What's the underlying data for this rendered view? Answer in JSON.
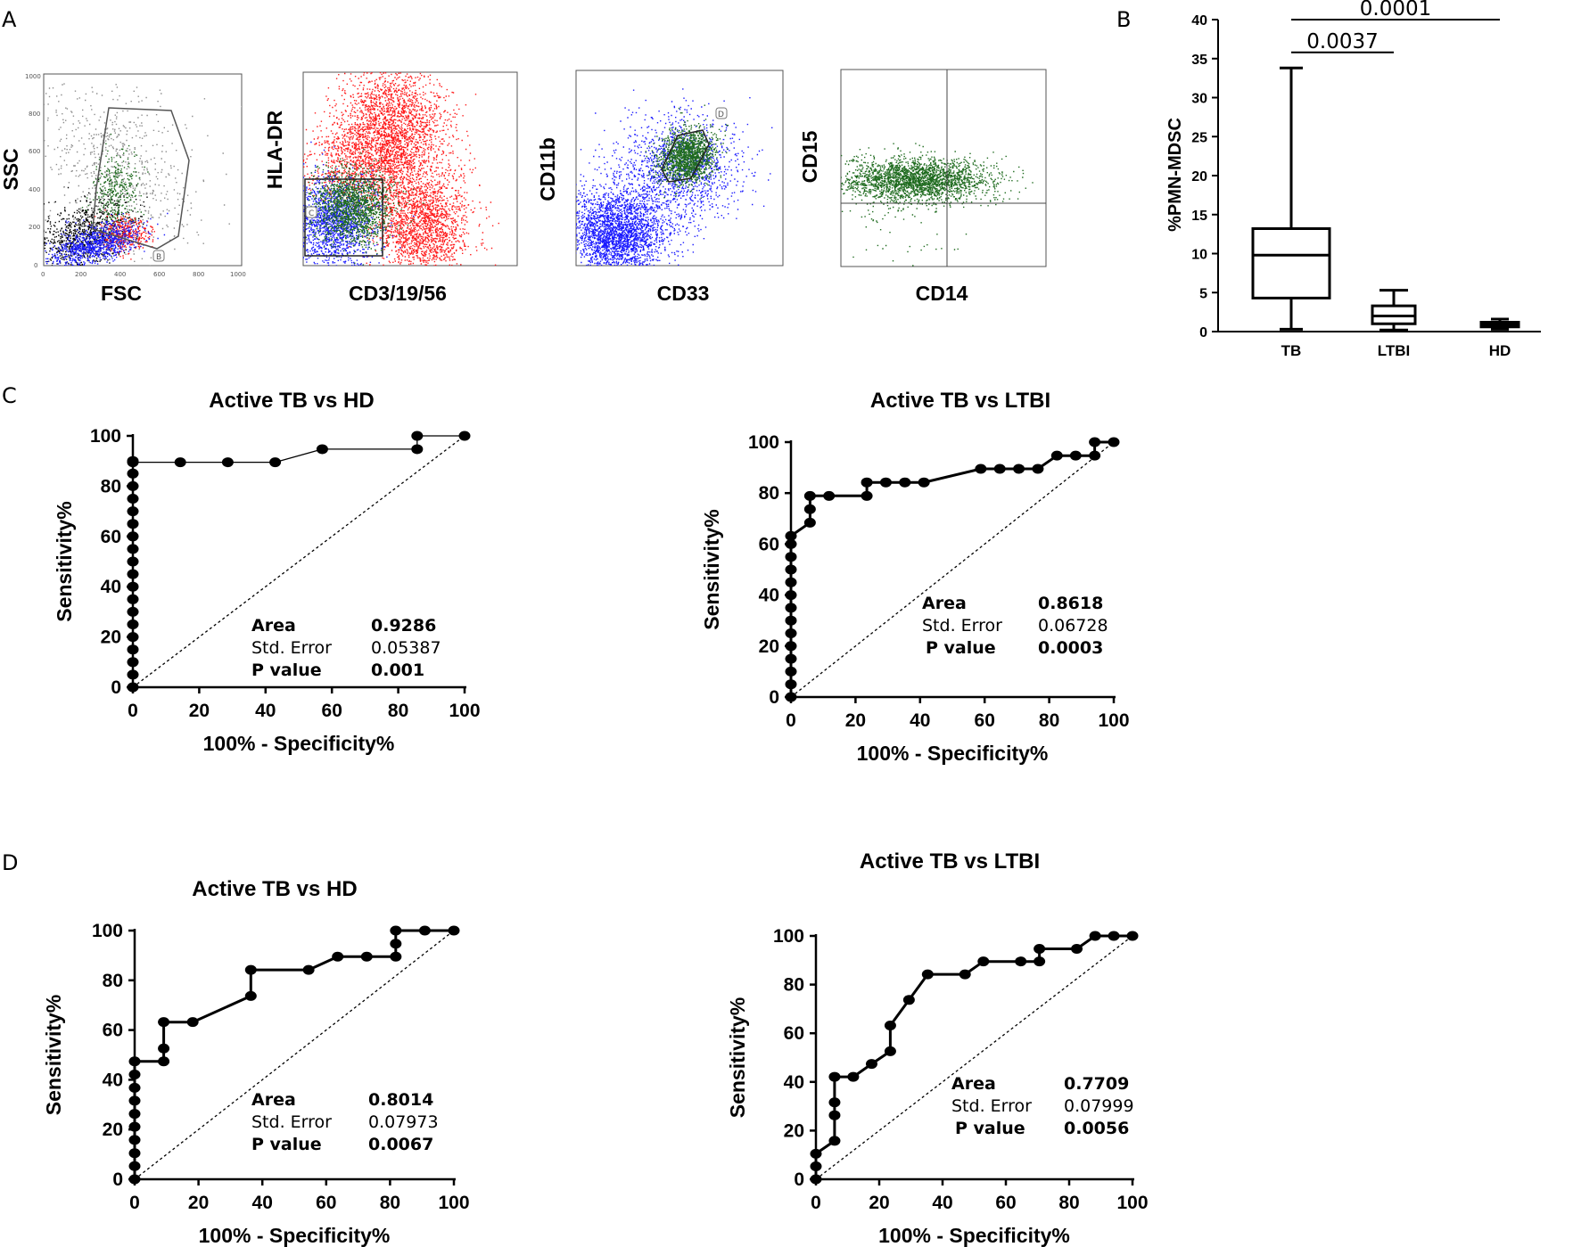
{
  "panel_labels": {
    "A": "A",
    "B": "B",
    "C": "C",
    "D": "D"
  },
  "flow_panels": [
    {
      "x_label": "FSC",
      "y_label": "SSC",
      "gate": "B"
    },
    {
      "x_label": "CD3/19/56",
      "y_label": "HLA-DR",
      "gate": "C"
    },
    {
      "x_label": "CD33",
      "y_label": "CD11b",
      "gate": "D"
    },
    {
      "x_label": "CD14",
      "y_label": "CD15",
      "gate": ""
    }
  ],
  "colors": {
    "red": "#ff1a1a",
    "blue": "#1a1aff",
    "green": "#1f6b1f",
    "black": "#000000",
    "grey": "#8c8c8c"
  },
  "chart_data": [
    {
      "id": "B",
      "type": "box",
      "ylabel": "%PMN-MDSC",
      "ylim": [
        0,
        40
      ],
      "yticks": [
        "0",
        "5",
        "10",
        "15",
        "20",
        "25",
        "30",
        "35",
        "40"
      ],
      "categories": [
        "TB",
        "LTBI",
        "HD"
      ],
      "boxes": [
        {
          "min": 0.3,
          "q1": 4.3,
          "median": 9.8,
          "q3": 13.2,
          "max": 33.8
        },
        {
          "min": 0.2,
          "q1": 1.0,
          "median": 2.0,
          "q3": 3.3,
          "max": 5.3
        },
        {
          "min": 0.3,
          "q1": 0.6,
          "median": 0.9,
          "q3": 1.2,
          "max": 1.6
        }
      ],
      "comparisons": [
        {
          "from": "TB",
          "to": "HD",
          "label": "0.0001",
          "y": 40.0
        },
        {
          "from": "TB",
          "to": "LTBI",
          "label": "0.0037",
          "y": 35.8
        }
      ]
    },
    {
      "id": "C-left",
      "type": "roc",
      "title": "Active TB vs HD",
      "xlabel": "100% - Specificity%",
      "ylabel": "Sensitivity%",
      "ticks": [
        "0",
        "20",
        "40",
        "60",
        "80",
        "100"
      ],
      "stats": {
        "area_label": "Area",
        "area": "0.9286",
        "se_label": "Std. Error",
        "se": "0.05387",
        "p_label": "P value",
        "p": "0.001"
      },
      "x": [
        0,
        0,
        0,
        0,
        0,
        0,
        0,
        0,
        0,
        0,
        0,
        0,
        0,
        0,
        0,
        0,
        0,
        0,
        0,
        0,
        14.3,
        28.6,
        42.9,
        57.1,
        85.7,
        85.7,
        100
      ],
      "y": [
        0,
        5,
        10,
        15,
        20,
        25,
        30,
        35,
        40,
        45,
        50,
        55,
        60,
        65,
        70,
        75,
        80,
        85,
        90,
        89.5,
        89.5,
        89.5,
        89.5,
        94.7,
        94.7,
        100,
        100
      ]
    },
    {
      "id": "C-right",
      "type": "roc",
      "title": "Active TB vs LTBI",
      "xlabel": "100% - Specificity%",
      "ylabel": "Sensitivity%",
      "ticks": [
        "0",
        "20",
        "40",
        "60",
        "80",
        "100"
      ],
      "stats": {
        "area_label": "Area",
        "area": "0.8618",
        "se_label": "Std. Error",
        "se": "0.06728",
        "p_label": "P value",
        "p": "0.0003"
      },
      "x": [
        0,
        0,
        0,
        0,
        0,
        0,
        0,
        0,
        0,
        0,
        0,
        0,
        0,
        0,
        5.9,
        5.9,
        5.9,
        11.8,
        23.5,
        23.5,
        29.4,
        35.3,
        41.2,
        58.8,
        64.7,
        70.6,
        76.5,
        82.4,
        88.2,
        94.1,
        94.1,
        100
      ],
      "y": [
        0,
        5,
        10,
        15,
        20,
        25,
        30,
        35,
        40,
        45,
        50,
        55,
        60,
        63.2,
        68.4,
        73.7,
        78.9,
        78.9,
        78.9,
        84.2,
        84.2,
        84.2,
        84.2,
        89.5,
        89.5,
        89.5,
        89.5,
        94.7,
        94.7,
        94.7,
        100,
        100
      ]
    },
    {
      "id": "D-left",
      "type": "roc",
      "title": "Active TB vs HD",
      "xlabel": "100% - Specificity%",
      "ylabel": "Sensitivity%",
      "ticks": [
        "0",
        "20",
        "40",
        "60",
        "80",
        "100"
      ],
      "stats": {
        "area_label": "Area",
        "area": "0.8014",
        "se_label": "Std. Error",
        "se": "0.07973",
        "p_label": "P value",
        "p": "0.0067"
      },
      "x": [
        0,
        0,
        0,
        0,
        0,
        0,
        0,
        0,
        0,
        0,
        9.1,
        9.1,
        9.1,
        18.2,
        36.4,
        36.4,
        54.5,
        63.6,
        72.7,
        81.8,
        81.8,
        81.8,
        90.9,
        100
      ],
      "y": [
        0,
        5.3,
        10.5,
        15.8,
        21.1,
        26.3,
        31.6,
        36.8,
        42.1,
        47.4,
        47.4,
        52.6,
        63.2,
        63.2,
        73.7,
        84.2,
        84.2,
        89.5,
        89.5,
        89.5,
        94.7,
        100,
        100,
        100
      ]
    },
    {
      "id": "D-right",
      "type": "roc",
      "title": "Active TB vs LTBI",
      "xlabel": "100% - Specificity%",
      "ylabel": "Sensitivity%",
      "ticks": [
        "0",
        "20",
        "40",
        "60",
        "80",
        "100"
      ],
      "stats": {
        "area_label": "Area",
        "area": "0.7709",
        "se_label": "Std. Error",
        "se": "0.07999",
        "p_label": "P value",
        "p": "0.0056"
      },
      "x": [
        0,
        0,
        0,
        5.9,
        5.9,
        5.9,
        5.9,
        11.8,
        17.6,
        23.5,
        23.5,
        29.4,
        35.3,
        47.1,
        52.9,
        64.7,
        70.6,
        70.6,
        82.4,
        88.2,
        94.1,
        100
      ],
      "y": [
        0,
        5.3,
        10.5,
        15.8,
        26.3,
        31.6,
        42.1,
        42.1,
        47.4,
        52.6,
        63.2,
        73.7,
        84.2,
        84.2,
        89.5,
        89.5,
        89.5,
        94.7,
        94.7,
        100,
        100,
        100
      ]
    }
  ]
}
